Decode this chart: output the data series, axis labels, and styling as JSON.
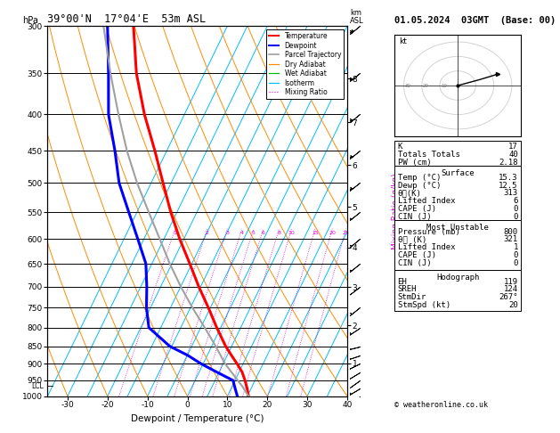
{
  "title_left": "39°00'N  17°04'E  53m ASL",
  "title_right": "01.05.2024  03GMT  (Base: 00)",
  "xlabel": "Dewpoint / Temperature (°C)",
  "p_levels": [
    300,
    350,
    400,
    450,
    500,
    550,
    600,
    650,
    700,
    750,
    800,
    850,
    900,
    950,
    1000
  ],
  "temp_xticks": [
    -30,
    -20,
    -10,
    0,
    10,
    20,
    30,
    40
  ],
  "T_min": -35,
  "T_max": 40,
  "skew": 45,
  "p_min": 300,
  "p_max": 1000,
  "lcl_pressure": 968,
  "temp_profile": {
    "pressure": [
      1000,
      975,
      950,
      925,
      900,
      875,
      850,
      800,
      750,
      700,
      650,
      600,
      550,
      500,
      450,
      400,
      350,
      300
    ],
    "temperature": [
      15.3,
      14.0,
      12.5,
      10.8,
      8.5,
      6.0,
      3.5,
      -1.0,
      -5.5,
      -10.5,
      -15.5,
      -21.0,
      -26.5,
      -32.0,
      -38.0,
      -45.0,
      -52.0,
      -58.5
    ]
  },
  "dewp_profile": {
    "pressure": [
      1000,
      975,
      950,
      925,
      900,
      875,
      850,
      800,
      750,
      700,
      650,
      600,
      550,
      500,
      450,
      400,
      350,
      300
    ],
    "temperature": [
      12.5,
      11.0,
      9.5,
      4.5,
      -0.5,
      -5.0,
      -10.5,
      -18.0,
      -21.0,
      -23.5,
      -26.5,
      -31.5,
      -37.0,
      -43.0,
      -48.0,
      -54.0,
      -59.0,
      -65.0
    ]
  },
  "parcel_profile": {
    "pressure": [
      1000,
      968,
      900,
      850,
      800,
      750,
      700,
      650,
      600,
      550,
      500,
      450,
      400,
      350,
      300
    ],
    "temperature": [
      15.3,
      12.5,
      5.5,
      1.0,
      -4.0,
      -9.5,
      -15.0,
      -20.5,
      -26.0,
      -32.0,
      -38.5,
      -45.0,
      -51.5,
      -58.5,
      -66.0
    ]
  },
  "mixing_ratio_vals": [
    1,
    2,
    3,
    4,
    5,
    6,
    8,
    10,
    15,
    20,
    25
  ],
  "isotherm_temps": [
    -35,
    -30,
    -25,
    -20,
    -15,
    -10,
    -5,
    0,
    5,
    10,
    15,
    20,
    25,
    30,
    35,
    40
  ],
  "dry_adiabat_thetas": [
    -30,
    -20,
    -10,
    0,
    10,
    20,
    30,
    40,
    50,
    60,
    70,
    80
  ],
  "wet_adiabat_Ts": [
    -15,
    -10,
    -5,
    0,
    5,
    10,
    15,
    20,
    25,
    30
  ],
  "colors": {
    "temperature": "#ff0000",
    "dewpoint": "#0000ff",
    "parcel": "#a0a0a0",
    "dry_adiabat": "#ff8c00",
    "wet_adiabat": "#00bb00",
    "isotherm": "#00bbff",
    "mixing_ratio": "#dd00dd",
    "grid": "#000000"
  },
  "km_ticks": [
    1,
    2,
    3,
    4,
    5,
    6,
    7,
    8
  ],
  "stats": {
    "K": 17,
    "Totals_Totals": 40,
    "PW_cm": "2.18",
    "surface_temp": "15.3",
    "surface_dewp": "12.5",
    "surface_theta_e": 313,
    "surface_LI": 6,
    "surface_CAPE": 0,
    "surface_CIN": 0,
    "mu_pressure": 800,
    "mu_theta_e": 321,
    "mu_LI": 1,
    "mu_CAPE": 0,
    "mu_CIN": 0,
    "EH": 119,
    "SREH": 124,
    "StmDir": "267°",
    "StmSpd": 20
  },
  "hodo_u": [
    0,
    3,
    12,
    20,
    22
  ],
  "hodo_v": [
    0,
    1,
    4,
    7,
    8
  ],
  "wind_pressures": [
    1000,
    975,
    950,
    925,
    900,
    875,
    850,
    800,
    750,
    700,
    650,
    600,
    550,
    500,
    450,
    400,
    350,
    300
  ],
  "wind_u": [
    2,
    5,
    7,
    10,
    8,
    6,
    4,
    3,
    5,
    8,
    10,
    12,
    15,
    18,
    20,
    22,
    25,
    27
  ],
  "wind_v": [
    2,
    3,
    5,
    6,
    4,
    2,
    1,
    2,
    4,
    6,
    8,
    10,
    12,
    14,
    16,
    18,
    20,
    22
  ]
}
